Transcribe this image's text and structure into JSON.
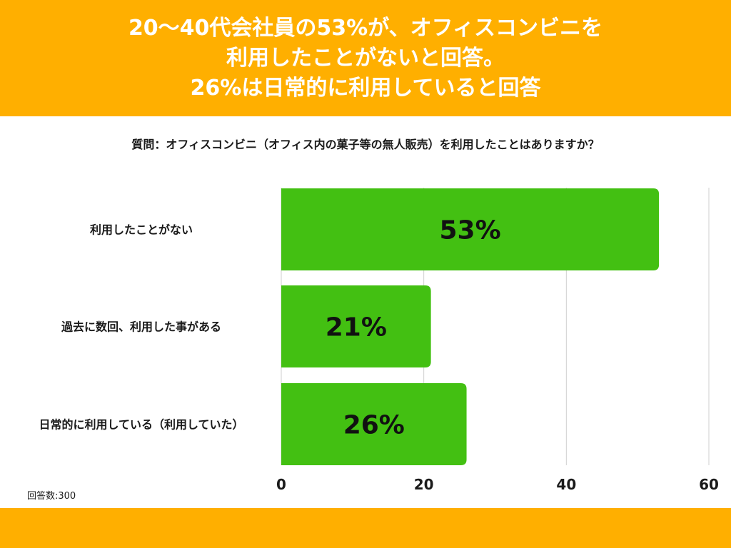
{
  "header": {
    "lines": [
      "20〜40代会社員の53%が、オフィスコンビニを",
      "利用したことがないと回答。",
      "26%は日常的に利用していると回答"
    ]
  },
  "question": "質問：オフィスコンビニ（オフィス内の菓子等の無人販売）を利用したことはありますか？",
  "respondents": "回答数:300",
  "colors": {
    "header": "#ffaf00",
    "bar": "#43c012",
    "footer": "#ffaf00"
  },
  "chart_data": {
    "type": "bar",
    "orientation": "horizontal",
    "categories": [
      "利用したことがない",
      "過去に数回、利用した事がある",
      "日常的に利用している（利用していた）"
    ],
    "values": [
      53,
      21,
      26
    ],
    "value_labels": [
      "53%",
      "21%",
      "26%"
    ],
    "xlim": [
      0,
      60
    ],
    "xticks": [
      0,
      20,
      40,
      60
    ],
    "grid": true
  }
}
